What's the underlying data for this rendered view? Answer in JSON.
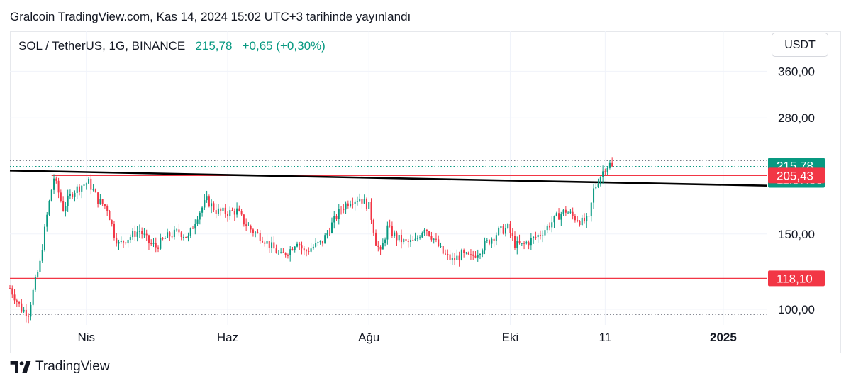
{
  "header": {
    "publish_text": "Gralcoin TradingView.com, Kas 14, 2024 15:02 UTC+3 tarihinde yayınlandı"
  },
  "legend": {
    "symbol": "SOL / TetherUS, 1G, BINANCE",
    "last": "215,78",
    "change": "+0,65 (+0,30%)"
  },
  "currency_button": "USDT",
  "brand": {
    "logo_icon": "tradingview-logo-icon",
    "name": "TradingView"
  },
  "colors": {
    "up": "#089981",
    "down": "#f23645",
    "trendline": "#000000",
    "level_line": "#f23645",
    "grid": "#f0f3fa",
    "dotted": "#787b86"
  },
  "chart_data": {
    "type": "candlestick",
    "symbol": "SOL / TetherUS",
    "interval": "1G",
    "exchange": "BINANCE",
    "y_ticks": [
      {
        "value": 100,
        "label": "100,00"
      },
      {
        "value": 150,
        "label": "150,00"
      },
      {
        "value": 280,
        "label": "280,00"
      },
      {
        "value": 360,
        "label": "360,00"
      }
    ],
    "x_ticks": [
      {
        "date": "2024-04-01",
        "label": "Nis"
      },
      {
        "date": "2024-06-01",
        "label": "Haz"
      },
      {
        "date": "2024-08-01",
        "label": "Ağu"
      },
      {
        "date": "2024-10-01",
        "label": "Eki"
      },
      {
        "date": "2024-11-11",
        "label": "11"
      },
      {
        "date": "2025-01-01",
        "label": "2025"
      }
    ],
    "x_range": [
      "2024-02-28",
      "2025-01-20"
    ],
    "y_scale": "log",
    "y_range": [
      93,
      420
    ],
    "price_tags": [
      {
        "label": "215,78",
        "sub": "11:57:50",
        "value": 215.78,
        "color": "#089981"
      },
      {
        "label": "205,43",
        "value": 205.43,
        "color": "#f23645"
      },
      {
        "label": "118,10",
        "value": 118.1,
        "color": "#f23645"
      }
    ],
    "horizontal_lines": [
      {
        "value": 205.43,
        "from": "2024-03-17",
        "to": "2025-01-20",
        "color": "#f23645"
      },
      {
        "value": 118.1,
        "from": "2024-02-28",
        "to": "2025-01-20",
        "color": "#f23645"
      }
    ],
    "dotted_lines": [
      {
        "value": 222.5
      },
      {
        "value": 215.78
      },
      {
        "value": 97.2
      }
    ],
    "trendline": {
      "from": {
        "date": "2024-02-28",
        "value": 211
      },
      "to": {
        "date": "2025-01-20",
        "value": 194.5
      }
    },
    "waypoints": [
      [
        "2024-02-28",
        112
      ],
      [
        "2024-03-04",
        100
      ],
      [
        "2024-03-07",
        98
      ],
      [
        "2024-03-12",
        128
      ],
      [
        "2024-03-16",
        178
      ],
      [
        "2024-03-18",
        203
      ],
      [
        "2024-03-22",
        172
      ],
      [
        "2024-03-26",
        188
      ],
      [
        "2024-03-30",
        195
      ],
      [
        "2024-04-02",
        198
      ],
      [
        "2024-04-06",
        180
      ],
      [
        "2024-04-10",
        172
      ],
      [
        "2024-04-13",
        150
      ],
      [
        "2024-04-15",
        142
      ],
      [
        "2024-04-20",
        148
      ],
      [
        "2024-04-24",
        153
      ],
      [
        "2024-04-28",
        143
      ],
      [
        "2024-05-01",
        140
      ],
      [
        "2024-05-06",
        148
      ],
      [
        "2024-05-11",
        152
      ],
      [
        "2024-05-15",
        147
      ],
      [
        "2024-05-19",
        166
      ],
      [
        "2024-05-23",
        180
      ],
      [
        "2024-05-27",
        170
      ],
      [
        "2024-06-01",
        168
      ],
      [
        "2024-06-05",
        170
      ],
      [
        "2024-06-08",
        160
      ],
      [
        "2024-06-12",
        152
      ],
      [
        "2024-06-16",
        147
      ],
      [
        "2024-06-20",
        140
      ],
      [
        "2024-06-24",
        133
      ],
      [
        "2024-06-28",
        138
      ],
      [
        "2024-07-01",
        145
      ],
      [
        "2024-07-04",
        136
      ],
      [
        "2024-07-08",
        140
      ],
      [
        "2024-07-12",
        144
      ],
      [
        "2024-07-16",
        158
      ],
      [
        "2024-07-20",
        172
      ],
      [
        "2024-07-24",
        180
      ],
      [
        "2024-07-28",
        182
      ],
      [
        "2024-08-01",
        174
      ],
      [
        "2024-08-04",
        144
      ],
      [
        "2024-08-06",
        135
      ],
      [
        "2024-08-09",
        155
      ],
      [
        "2024-08-13",
        147
      ],
      [
        "2024-08-17",
        143
      ],
      [
        "2024-08-21",
        144
      ],
      [
        "2024-08-25",
        156
      ],
      [
        "2024-08-29",
        146
      ],
      [
        "2024-09-02",
        135
      ],
      [
        "2024-09-06",
        130
      ],
      [
        "2024-09-10",
        134
      ],
      [
        "2024-09-14",
        132
      ],
      [
        "2024-09-18",
        138
      ],
      [
        "2024-09-22",
        145
      ],
      [
        "2024-09-26",
        152
      ],
      [
        "2024-09-30",
        155
      ],
      [
        "2024-10-03",
        142
      ],
      [
        "2024-10-06",
        141
      ],
      [
        "2024-10-10",
        145
      ],
      [
        "2024-10-14",
        150
      ],
      [
        "2024-10-18",
        158
      ],
      [
        "2024-10-22",
        166
      ],
      [
        "2024-10-25",
        170
      ],
      [
        "2024-10-28",
        165
      ],
      [
        "2024-11-01",
        160
      ],
      [
        "2024-11-04",
        162
      ],
      [
        "2024-11-06",
        190
      ],
      [
        "2024-11-09",
        205
      ],
      [
        "2024-11-11",
        215
      ],
      [
        "2024-11-13",
        218
      ],
      [
        "2024-11-14",
        215.78
      ]
    ]
  }
}
